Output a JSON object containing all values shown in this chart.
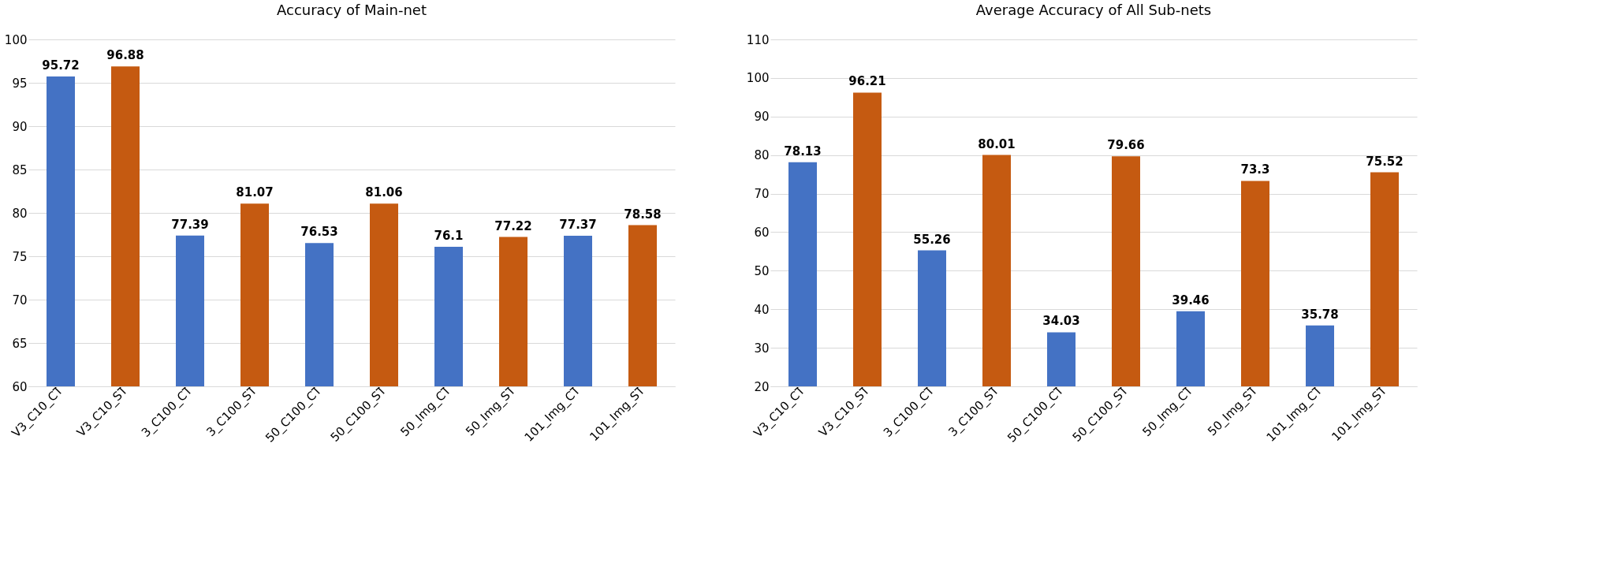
{
  "chart_data": [
    {
      "type": "bar",
      "title": "Accuracy of Main-net",
      "categories": [
        "V3_C10_CT",
        "V3_C10_ST",
        "3_C100_CT",
        "3_C100_ST",
        "50_C100_CT",
        "50_C100_ST",
        "50_Img_CT",
        "50_Img_ST",
        "101_Img_CT",
        "101_Img_ST"
      ],
      "values": [
        95.72,
        96.88,
        77.39,
        81.07,
        76.53,
        81.06,
        76.1,
        77.22,
        77.37,
        78.58
      ],
      "colors": [
        "#4472c4",
        "#c55a11",
        "#4472c4",
        "#c55a11",
        "#4472c4",
        "#c55a11",
        "#4472c4",
        "#c55a11",
        "#4472c4",
        "#c55a11"
      ],
      "ylim": [
        60,
        100
      ],
      "yticks": [
        60,
        65,
        70,
        75,
        80,
        85,
        90,
        95,
        100
      ],
      "grid": "y",
      "data_labels": true
    },
    {
      "type": "bar",
      "title": "Average Accuracy of All Sub-nets",
      "categories": [
        "V3_C10_CT",
        "V3_C10_ST",
        "3_C100_CT",
        "3_C100_ST",
        "50_C100_CT",
        "50_C100_ST",
        "50_Img_CT",
        "50_Img_ST",
        "101_Img_CT",
        "101_Img_ST"
      ],
      "values": [
        78.13,
        96.21,
        55.26,
        80.01,
        34.03,
        79.66,
        39.46,
        73.3,
        35.78,
        75.52
      ],
      "colors": [
        "#4472c4",
        "#c55a11",
        "#4472c4",
        "#c55a11",
        "#4472c4",
        "#c55a11",
        "#4472c4",
        "#c55a11",
        "#4472c4",
        "#c55a11"
      ],
      "ylim": [
        20,
        110
      ],
      "yticks": [
        20,
        30,
        40,
        50,
        60,
        70,
        80,
        90,
        100,
        110
      ],
      "grid": "y",
      "data_labels": true
    }
  ]
}
